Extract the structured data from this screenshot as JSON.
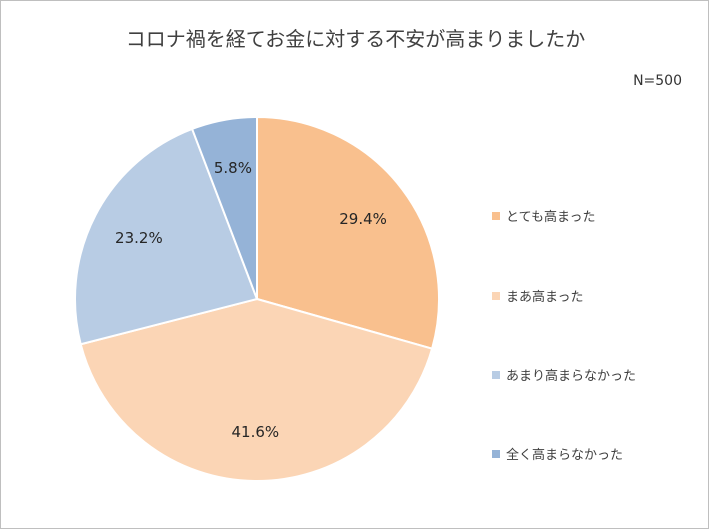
{
  "chart_data": {
    "type": "pie",
    "title": "コロナ禍を経てお金に対する不安が高まりましたか",
    "note": "N=500",
    "categories": [
      "とても高まった",
      "まあ高まった",
      "あまり高まらなかった",
      "全く高まらなかった"
    ],
    "values": [
      29.4,
      41.6,
      23.2,
      5.8
    ],
    "data_labels": [
      "29.4%",
      "41.6%",
      "23.2%",
      "5.8%"
    ],
    "colors": [
      "#f9c08e",
      "#fbd5b5",
      "#b8cce4",
      "#95b3d7"
    ],
    "start_angle_deg": 0,
    "direction": "clockwise",
    "legend_position": "right"
  }
}
